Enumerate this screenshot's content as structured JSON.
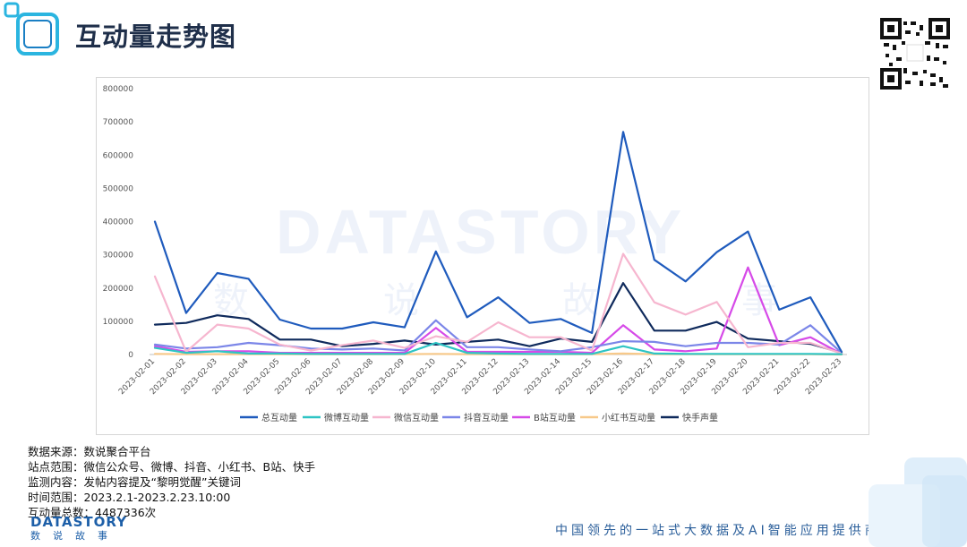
{
  "page": {
    "title": "互动量走势图"
  },
  "info": {
    "source": "数据来源：数说聚合平台",
    "sites": "站点范围：微信公众号、微博、抖音、小红书、B站、快手",
    "content": "监测内容：发帖内容提及“黎明觉醒”关键词",
    "time": "时间范围：2023.2.1-2023.2.23.10:00",
    "total": "互动量总数：4487336次"
  },
  "watermark": {
    "brand": "DATASTORY",
    "chars": [
      "数",
      "说",
      "故",
      "事"
    ]
  },
  "footer": {
    "brand": "DATASTORY",
    "brand_sub": "数说故事",
    "slogan": "中国领先的一站式大数据及AI智能应用提供商"
  },
  "chart_data": {
    "type": "line",
    "title": "",
    "xlabel": "",
    "ylabel": "",
    "ylim": [
      0,
      800000
    ],
    "y_ticks": [
      "0",
      "100000",
      "200000",
      "300000",
      "400000",
      "500000",
      "600000",
      "700000",
      "800000"
    ],
    "grid": false,
    "legend_position": "bottom",
    "categories": [
      "2023-02-01",
      "2023-02-02",
      "2023-02-03",
      "2023-02-04",
      "2023-02-05",
      "2023-02-06",
      "2023-02-07",
      "2023-02-08",
      "2023-02-09",
      "2023-02-10",
      "2023-02-11",
      "2023-02-12",
      "2023-02-13",
      "2023-02-14",
      "2023-02-15",
      "2023-02-16",
      "2023-02-17",
      "2023-02-18",
      "2023-02-19",
      "2023-02-20",
      "2023-02-21",
      "2023-02-22",
      "2023-02-23"
    ],
    "series": [
      {
        "name": "总互动量",
        "color": "#1f5bbd",
        "values": [
          400000,
          125000,
          245000,
          228000,
          105000,
          78000,
          78000,
          97000,
          82000,
          310000,
          112000,
          172000,
          95000,
          107000,
          65000,
          670000,
          285000,
          220000,
          308000,
          370000,
          135000,
          172000,
          8000
        ]
      },
      {
        "name": "微博互动量",
        "color": "#2ec4c4",
        "values": [
          20000,
          5000,
          10000,
          3000,
          3000,
          2000,
          2000,
          2000,
          2000,
          35000,
          5000,
          3000,
          2000,
          2000,
          2000,
          25000,
          3000,
          2000,
          2000,
          2000,
          2000,
          2000,
          1000
        ]
      },
      {
        "name": "微信互动量",
        "color": "#f6b6cf",
        "values": [
          235000,
          8000,
          90000,
          78000,
          30000,
          12000,
          28000,
          42000,
          20000,
          55000,
          38000,
          97000,
          52000,
          52000,
          12000,
          303000,
          157000,
          120000,
          158000,
          22000,
          35000,
          35000,
          3000
        ]
      },
      {
        "name": "抖音互动量",
        "color": "#7b86e8",
        "values": [
          30000,
          18000,
          22000,
          35000,
          28000,
          18000,
          15000,
          18000,
          12000,
          103000,
          22000,
          22000,
          15000,
          10000,
          22000,
          40000,
          38000,
          25000,
          35000,
          35000,
          30000,
          88000,
          5000
        ]
      },
      {
        "name": "B站互动量",
        "color": "#d64ae8",
        "values": [
          25000,
          8000,
          10000,
          10000,
          5000,
          5000,
          5000,
          5000,
          5000,
          80000,
          8000,
          8000,
          8000,
          8000,
          5000,
          88000,
          15000,
          10000,
          18000,
          262000,
          28000,
          52000,
          2000
        ]
      },
      {
        "name": "小红书互动量",
        "color": "#f7c98a",
        "values": [
          2000,
          1000,
          1000,
          1000,
          1000,
          1000,
          1000,
          1000,
          1000,
          2000,
          1000,
          1000,
          1000,
          1000,
          1000,
          3000,
          1000,
          1000,
          1000,
          1000,
          1000,
          1000,
          0
        ]
      },
      {
        "name": "快手声量",
        "color": "#0f2a5c",
        "values": [
          90000,
          95000,
          118000,
          107000,
          45000,
          45000,
          25000,
          32000,
          42000,
          30000,
          38000,
          45000,
          25000,
          48000,
          38000,
          215000,
          72000,
          72000,
          98000,
          48000,
          40000,
          32000,
          5000
        ]
      }
    ]
  }
}
